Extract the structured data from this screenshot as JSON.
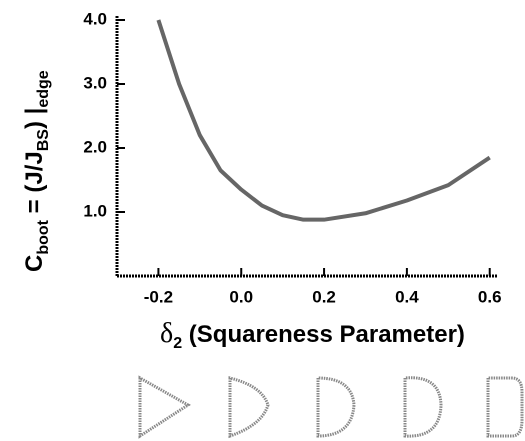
{
  "chart_data": {
    "type": "line",
    "ylabel": [
      "C",
      "boot",
      " = (J/J",
      "BS",
      ") |",
      "edge"
    ],
    "xlabel": [
      "δ",
      "2",
      " (Squareness Parameter)"
    ],
    "x": [
      -0.2,
      -0.15,
      -0.1,
      -0.05,
      0,
      0.05,
      0.1,
      0.15,
      0.2,
      0.3,
      0.4,
      0.5,
      0.6
    ],
    "values": [
      4.0,
      3.0,
      2.2,
      1.65,
      1.35,
      1.1,
      0.95,
      0.88,
      0.88,
      0.98,
      1.18,
      1.42,
      1.85
    ],
    "color": "#666666",
    "xlim": [
      -0.3,
      0.62
    ],
    "ylim": [
      0,
      4
    ],
    "xticks": [
      -0.2,
      {
        "value": 0,
        "label": "0.0"
      },
      0.2,
      0.4,
      0.6
    ],
    "yticks": [
      {
        "value": 1,
        "label": "1.0"
      },
      {
        "value": 2,
        "label": "2.0"
      },
      {
        "value": 3,
        "label": "3.0"
      },
      {
        "value": 4,
        "label": "4.0"
      }
    ]
  }
}
